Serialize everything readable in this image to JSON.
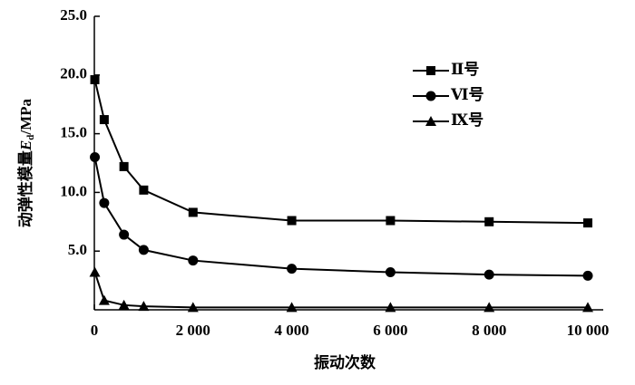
{
  "chart_data": {
    "type": "line",
    "x_label": "振动次数",
    "y_label": [
      "动弹性模量",
      "E",
      "d",
      "/MPa"
    ],
    "x": [
      10,
      200,
      600,
      1000,
      2000,
      4000,
      6000,
      8000,
      10000
    ],
    "series": [
      {
        "name": "Ⅱ号",
        "color": "#000000",
        "marker": "square",
        "values": [
          19.6,
          16.2,
          12.2,
          10.2,
          8.3,
          7.6,
          7.6,
          7.5,
          7.4
        ]
      },
      {
        "name": "Ⅵ号",
        "color": "#000000",
        "marker": "circle",
        "values": [
          13.0,
          9.1,
          6.4,
          5.1,
          4.2,
          3.5,
          3.2,
          3.0,
          2.9
        ]
      },
      {
        "name": "Ⅸ号",
        "color": "#000000",
        "marker": "triangle",
        "values": [
          3.2,
          0.8,
          0.4,
          0.3,
          0.2,
          0.2,
          0.2,
          0.2,
          0.2
        ]
      }
    ],
    "xlim": [
      0,
      10000
    ],
    "xticks": [
      0,
      {
        "value": 2000,
        "label": "2 000"
      },
      {
        "value": 4000,
        "label": "4 000"
      },
      {
        "value": 6000,
        "label": "6 000"
      },
      {
        "value": 8000,
        "label": "8 000"
      },
      {
        "value": 10000,
        "label": "10 000"
      }
    ],
    "ylim": [
      0,
      25
    ],
    "yticks": [
      {
        "value": 5,
        "label": "5.0"
      },
      {
        "value": 10,
        "label": "10.0"
      },
      {
        "value": 15,
        "label": "15.0"
      },
      {
        "value": 20,
        "label": "20.0"
      },
      {
        "value": 25,
        "label": "25.0"
      }
    ],
    "legend": "upper-right"
  }
}
